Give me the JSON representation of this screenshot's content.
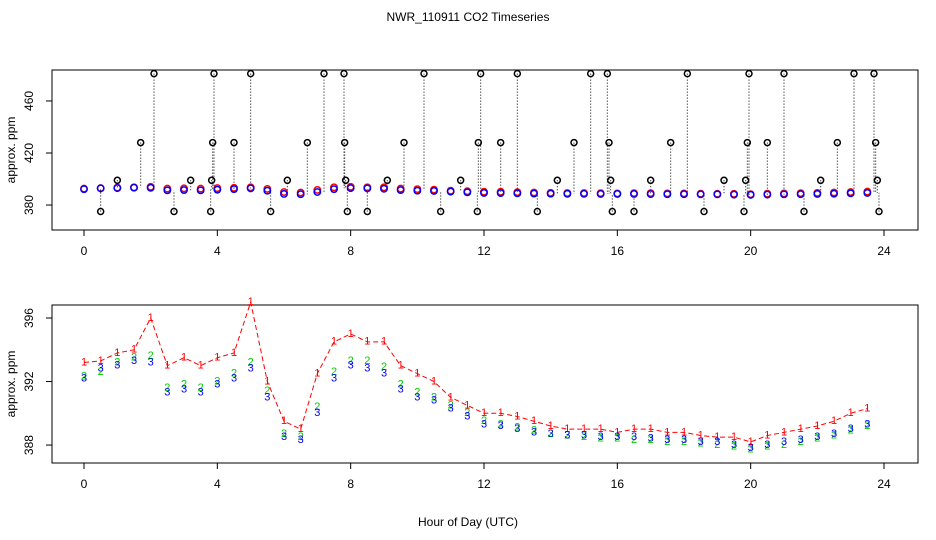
{
  "chart_data": [
    {
      "type": "scatter",
      "title": "NWR_110911  CO2 Timeseries",
      "ylabel": "approx. ppm",
      "x": [
        0,
        0.5,
        1,
        1.5,
        2,
        2.5,
        3,
        3.5,
        4,
        4.5,
        5,
        5.5,
        6,
        6.5,
        7,
        7.5,
        8,
        8.5,
        9,
        9.5,
        10,
        10.5,
        11,
        11.5,
        12,
        12.5,
        13,
        13.5,
        14,
        14.5,
        15,
        15.5,
        16,
        16.5,
        17,
        17.5,
        18,
        18.5,
        19,
        19.5,
        20,
        20.5,
        21,
        21.5,
        22,
        22.5,
        23,
        23.5
      ],
      "series": [
        {
          "color": "#ff0000",
          "values": [
            392.6,
            393,
            393.4,
            393.6,
            394,
            392.6,
            392.8,
            392.6,
            393,
            393.2,
            393.6,
            392.4,
            390,
            389.6,
            391.6,
            393.6,
            394,
            393.6,
            393.6,
            392.6,
            392.2,
            391.8,
            391,
            390.6,
            390.2,
            390.2,
            389.9,
            389.6,
            389.4,
            389.2,
            389.2,
            389.1,
            388.9,
            389.1,
            389.1,
            388.9,
            388.9,
            388.7,
            388.6,
            388.6,
            388.3,
            388.7,
            388.9,
            389.1,
            389.3,
            389.6,
            390,
            390.3
          ]
        },
        {
          "color": "#0000ff",
          "values": [
            392.2,
            392.8,
            393,
            393.3,
            393.2,
            391.3,
            391.5,
            391.3,
            391.8,
            392.2,
            392.8,
            391,
            388.5,
            388.3,
            390,
            392.2,
            393,
            392.8,
            392.5,
            391.5,
            391,
            390.8,
            390.3,
            389.8,
            389.3,
            389.2,
            389,
            388.8,
            388.7,
            388.6,
            388.6,
            388.5,
            388.5,
            388.5,
            388.4,
            388.3,
            388.3,
            388.2,
            388.2,
            388,
            387.8,
            388,
            388.2,
            388.3,
            388.5,
            388.7,
            389,
            389.3
          ]
        }
      ],
      "flags": {
        "color": "#000000",
        "x": [
          0.5,
          1,
          1.7,
          2.1,
          2.7,
          3.2,
          3.8,
          3.83,
          3.86,
          3.9,
          4.5,
          5,
          5.6,
          6.1,
          6.7,
          7.2,
          7.8,
          7.82,
          7.85,
          7.9,
          8.5,
          9.1,
          9.6,
          10.2,
          10.7,
          11.3,
          11.8,
          11.83,
          11.9,
          12.5,
          13,
          13.6,
          14.2,
          14.7,
          15.2,
          15.7,
          15.75,
          15.8,
          15.85,
          16.5,
          17,
          17.6,
          18.1,
          18.6,
          19.2,
          19.8,
          19.85,
          19.9,
          19.95,
          20.5,
          21,
          21.6,
          22.1,
          22.6,
          23.1,
          23.7,
          23.75,
          23.8,
          23.85
        ],
        "values": [
          375,
          399,
          428,
          481,
          375,
          399,
          375,
          399,
          428,
          481,
          428,
          481,
          375,
          399,
          428,
          481,
          481,
          428,
          399,
          375,
          375,
          399,
          428,
          481,
          375,
          399,
          375,
          428,
          481,
          428,
          481,
          375,
          399,
          428,
          481,
          481,
          428,
          399,
          375,
          375,
          399,
          428,
          481,
          375,
          399,
          375,
          399,
          428,
          481,
          428,
          481,
          375,
          399,
          428,
          481,
          481,
          428,
          399,
          375
        ]
      },
      "xlim": [
        -0.96,
        25.02
      ],
      "xticks": [
        0,
        4,
        8,
        12,
        16,
        20,
        24
      ],
      "ylim": [
        360.8,
        483.8
      ],
      "yticks": [
        380,
        420,
        460
      ]
    },
    {
      "type": "symbols",
      "ylabel": "approx. ppm",
      "xlabel": "Hour of Day (UTC)",
      "x": [
        0,
        0.5,
        1,
        1.5,
        2,
        2.5,
        3,
        3.5,
        4,
        4.5,
        5,
        5.5,
        6,
        6.5,
        7,
        7.5,
        8,
        8.5,
        9,
        9.5,
        10,
        10.5,
        11,
        11.5,
        12,
        12.5,
        13,
        13.5,
        14,
        14.5,
        15,
        15.5,
        16,
        16.5,
        17,
        17.5,
        18,
        18.5,
        19,
        19.5,
        20,
        20.5,
        21,
        21.5,
        22,
        22.5,
        23,
        23.5
      ],
      "series": [
        {
          "pch": "1",
          "color": "#ff0000",
          "lty": "dashed",
          "values": [
            393.2,
            393.3,
            393.8,
            394,
            396,
            393,
            393.5,
            393,
            393.5,
            393.8,
            397,
            392,
            389.5,
            389,
            392.5,
            394.5,
            395,
            394.5,
            394.5,
            393,
            392.5,
            392,
            391,
            390.5,
            390,
            390,
            389.8,
            389.5,
            389.2,
            389,
            389,
            389,
            388.8,
            389,
            389,
            388.8,
            388.8,
            388.6,
            388.5,
            388.5,
            388.2,
            388.6,
            388.8,
            389,
            389.2,
            389.5,
            390,
            390.3
          ]
        },
        {
          "pch": "2",
          "color": "#00cc00",
          "values": [
            392.3,
            392.6,
            393.2,
            393.5,
            393.6,
            391.6,
            391.8,
            391.6,
            392,
            392.5,
            393.2,
            391.4,
            388.7,
            388.5,
            390.4,
            392.6,
            393.3,
            393.3,
            392.9,
            391.8,
            391.3,
            391,
            390.5,
            390,
            389.5,
            389.3,
            389.1,
            388.9,
            388.7,
            388.6,
            388.5,
            388.4,
            388.4,
            388.3,
            388.3,
            388.2,
            388.2,
            388.1,
            388,
            387.9,
            387.7,
            387.9,
            388,
            388.2,
            388.4,
            388.6,
            388.9,
            389.2
          ]
        },
        {
          "pch": "3",
          "color": "#0000ff",
          "values": [
            392.2,
            392.8,
            393,
            393.3,
            393.2,
            391.3,
            391.5,
            391.3,
            391.8,
            392.2,
            392.8,
            391,
            388.5,
            388.3,
            390,
            392.2,
            393,
            392.8,
            392.5,
            391.5,
            391,
            390.8,
            390.3,
            389.8,
            389.3,
            389.2,
            389,
            388.8,
            388.7,
            388.6,
            388.6,
            388.5,
            388.5,
            388.5,
            388.4,
            388.3,
            388.3,
            388.2,
            388.2,
            388,
            387.8,
            388,
            388.2,
            388.3,
            388.5,
            388.7,
            389,
            389.3
          ]
        }
      ],
      "xlim": [
        -0.96,
        25.02
      ],
      "xticks": [
        0,
        4,
        8,
        12,
        16,
        20,
        24
      ],
      "ylim": [
        386.87,
        396.82
      ],
      "yticks": [
        388,
        392,
        396
      ]
    }
  ]
}
